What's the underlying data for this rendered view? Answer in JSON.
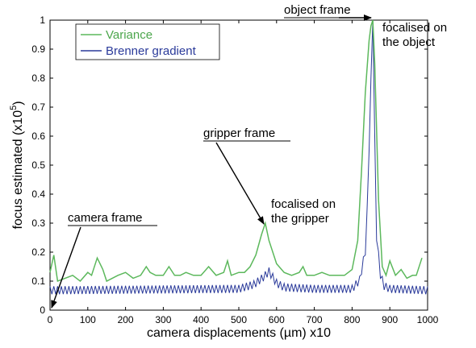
{
  "chart_data": {
    "type": "line",
    "title": "",
    "xlabel": "camera displacements (µm) x10",
    "ylabel_main": "focus estimated (x10",
    "ylabel_exp": "5",
    "ylabel_tail": ")",
    "xlim": [
      0,
      1000
    ],
    "ylim": [
      0,
      1
    ],
    "xticks": [
      0,
      100,
      200,
      300,
      400,
      500,
      600,
      700,
      800,
      900,
      1000
    ],
    "yticks": [
      0,
      0.1,
      0.2,
      0.3,
      0.4,
      0.5,
      0.6,
      0.7,
      0.8,
      0.9,
      1
    ],
    "grid": false,
    "legend_position": "top-left",
    "series": [
      {
        "name": "Variance",
        "color": "#5cb85c",
        "x": [
          0,
          10,
          20,
          40,
          60,
          80,
          100,
          110,
          125,
          140,
          150,
          165,
          180,
          200,
          220,
          240,
          255,
          265,
          280,
          300,
          315,
          330,
          345,
          360,
          380,
          400,
          420,
          440,
          460,
          470,
          480,
          500,
          515,
          530,
          545,
          560,
          570,
          580,
          600,
          620,
          640,
          660,
          670,
          680,
          700,
          720,
          740,
          760,
          780,
          800,
          815,
          825,
          835,
          845,
          850,
          855,
          860,
          870,
          880,
          890,
          900,
          915,
          930,
          945,
          960,
          970,
          985
        ],
        "values": [
          0.13,
          0.19,
          0.1,
          0.11,
          0.12,
          0.1,
          0.13,
          0.12,
          0.18,
          0.14,
          0.1,
          0.11,
          0.12,
          0.13,
          0.11,
          0.12,
          0.15,
          0.13,
          0.12,
          0.12,
          0.15,
          0.12,
          0.12,
          0.13,
          0.12,
          0.12,
          0.15,
          0.12,
          0.13,
          0.17,
          0.12,
          0.13,
          0.13,
          0.15,
          0.19,
          0.26,
          0.3,
          0.24,
          0.16,
          0.13,
          0.12,
          0.13,
          0.15,
          0.12,
          0.12,
          0.13,
          0.12,
          0.12,
          0.12,
          0.14,
          0.24,
          0.48,
          0.75,
          0.93,
          0.98,
          1.0,
          0.85,
          0.38,
          0.15,
          0.12,
          0.17,
          0.12,
          0.14,
          0.11,
          0.12,
          0.12,
          0.18
        ]
      },
      {
        "name": "Brenner gradient",
        "color": "#2a3a9a",
        "x": [
          0,
          500,
          540,
          565,
          580,
          600,
          620,
          700,
          800,
          820,
          835,
          843,
          850,
          855,
          860,
          865,
          875,
          885,
          900,
          1000
        ],
        "values": [
          0.065,
          0.07,
          0.085,
          0.11,
          0.13,
          0.09,
          0.075,
          0.07,
          0.07,
          0.1,
          0.2,
          0.45,
          0.8,
          1.0,
          0.6,
          0.25,
          0.12,
          0.08,
          0.07,
          0.065
        ],
        "oscillation_amplitude": 0.017
      }
    ],
    "annotations": [
      {
        "text": "object frame",
        "lines": [
          "object frame"
        ]
      },
      {
        "text": "focalised on the object",
        "lines": [
          "focalised on",
          "the object"
        ]
      },
      {
        "text": "gripper frame",
        "lines": [
          "gripper frame"
        ]
      },
      {
        "text": "focalised on the gripper",
        "lines": [
          "focalised on",
          "the gripper"
        ]
      },
      {
        "text": "camera frame",
        "lines": [
          "camera frame"
        ]
      }
    ]
  }
}
